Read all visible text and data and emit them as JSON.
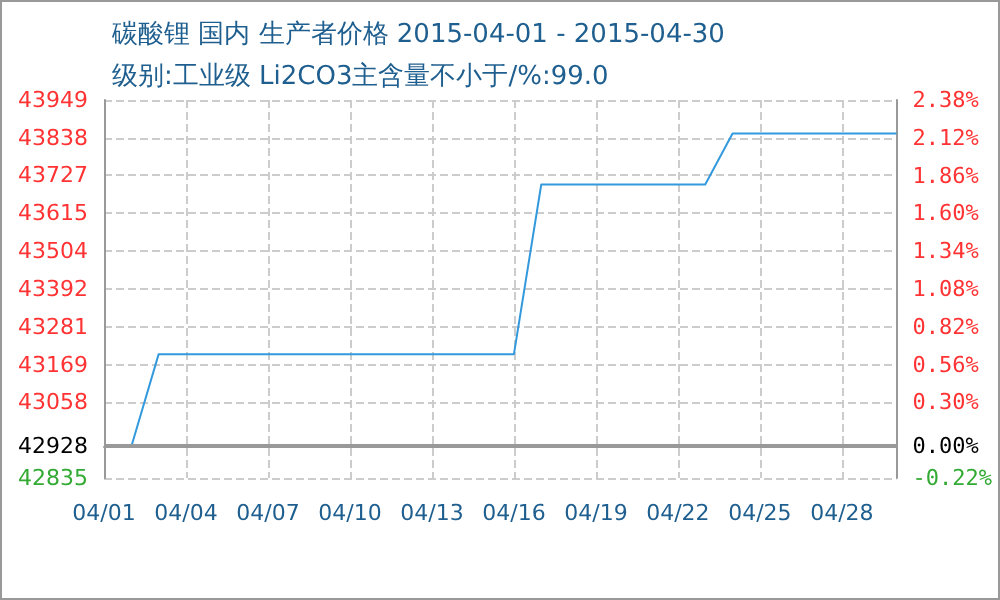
{
  "chart_data": {
    "type": "line",
    "title": "碳酸锂 国内 生产者价格 2015-04-01 - 2015-04-30",
    "subtitle": "级别:工业级 Li2CO3主含量不小于/%:99.0",
    "x": [
      "2015-04-01",
      "2015-04-02",
      "2015-04-03",
      "2015-04-16",
      "2015-04-17",
      "2015-04-23",
      "2015-04-24",
      "2015-04-30"
    ],
    "series": [
      {
        "color": "#3399dd",
        "values": [
          42928,
          42928,
          43200,
          43200,
          43700,
          43700,
          43850,
          43850
        ]
      }
    ],
    "xlim": [
      "2015-04-01",
      "2015-04-30"
    ],
    "xticks": [
      {
        "value": "2015-04-01",
        "label": "04/01"
      },
      {
        "value": "2015-04-04",
        "label": "04/04"
      },
      {
        "value": "2015-04-07",
        "label": "04/07"
      },
      {
        "value": "2015-04-10",
        "label": "04/10"
      },
      {
        "value": "2015-04-13",
        "label": "04/13"
      },
      {
        "value": "2015-04-16",
        "label": "04/16"
      },
      {
        "value": "2015-04-19",
        "label": "04/19"
      },
      {
        "value": "2015-04-22",
        "label": "04/22"
      },
      {
        "value": "2015-04-25",
        "label": "04/25"
      },
      {
        "value": "2015-04-28",
        "label": "04/28"
      }
    ],
    "ylim": [
      42835,
      43949
    ],
    "yticks": [
      42835,
      42928,
      43058,
      43169,
      43281,
      43392,
      43504,
      43615,
      43727,
      43838,
      43949
    ],
    "y2lim": [
      -0.22,
      2.38
    ],
    "y2ticks": [
      {
        "value": -0.22,
        "label": "-0.22%"
      },
      {
        "value": 0,
        "label": "0.00%"
      },
      {
        "value": 0.3,
        "label": "0.30%"
      },
      {
        "value": 0.56,
        "label": "0.56%"
      },
      {
        "value": 0.82,
        "label": "0.82%"
      },
      {
        "value": 1.08,
        "label": "1.08%"
      },
      {
        "value": 1.34,
        "label": "1.34%"
      },
      {
        "value": 1.6,
        "label": "1.60%"
      },
      {
        "value": 1.86,
        "label": "1.86%"
      },
      {
        "value": 2.12,
        "label": "2.12%"
      },
      {
        "value": 2.38,
        "label": "2.38%"
      }
    ],
    "ref_lines": [
      {
        "axis": "y",
        "value": 42928,
        "color": "#999999"
      }
    ],
    "grid": true,
    "marker": "none",
    "line_style": "solid"
  }
}
